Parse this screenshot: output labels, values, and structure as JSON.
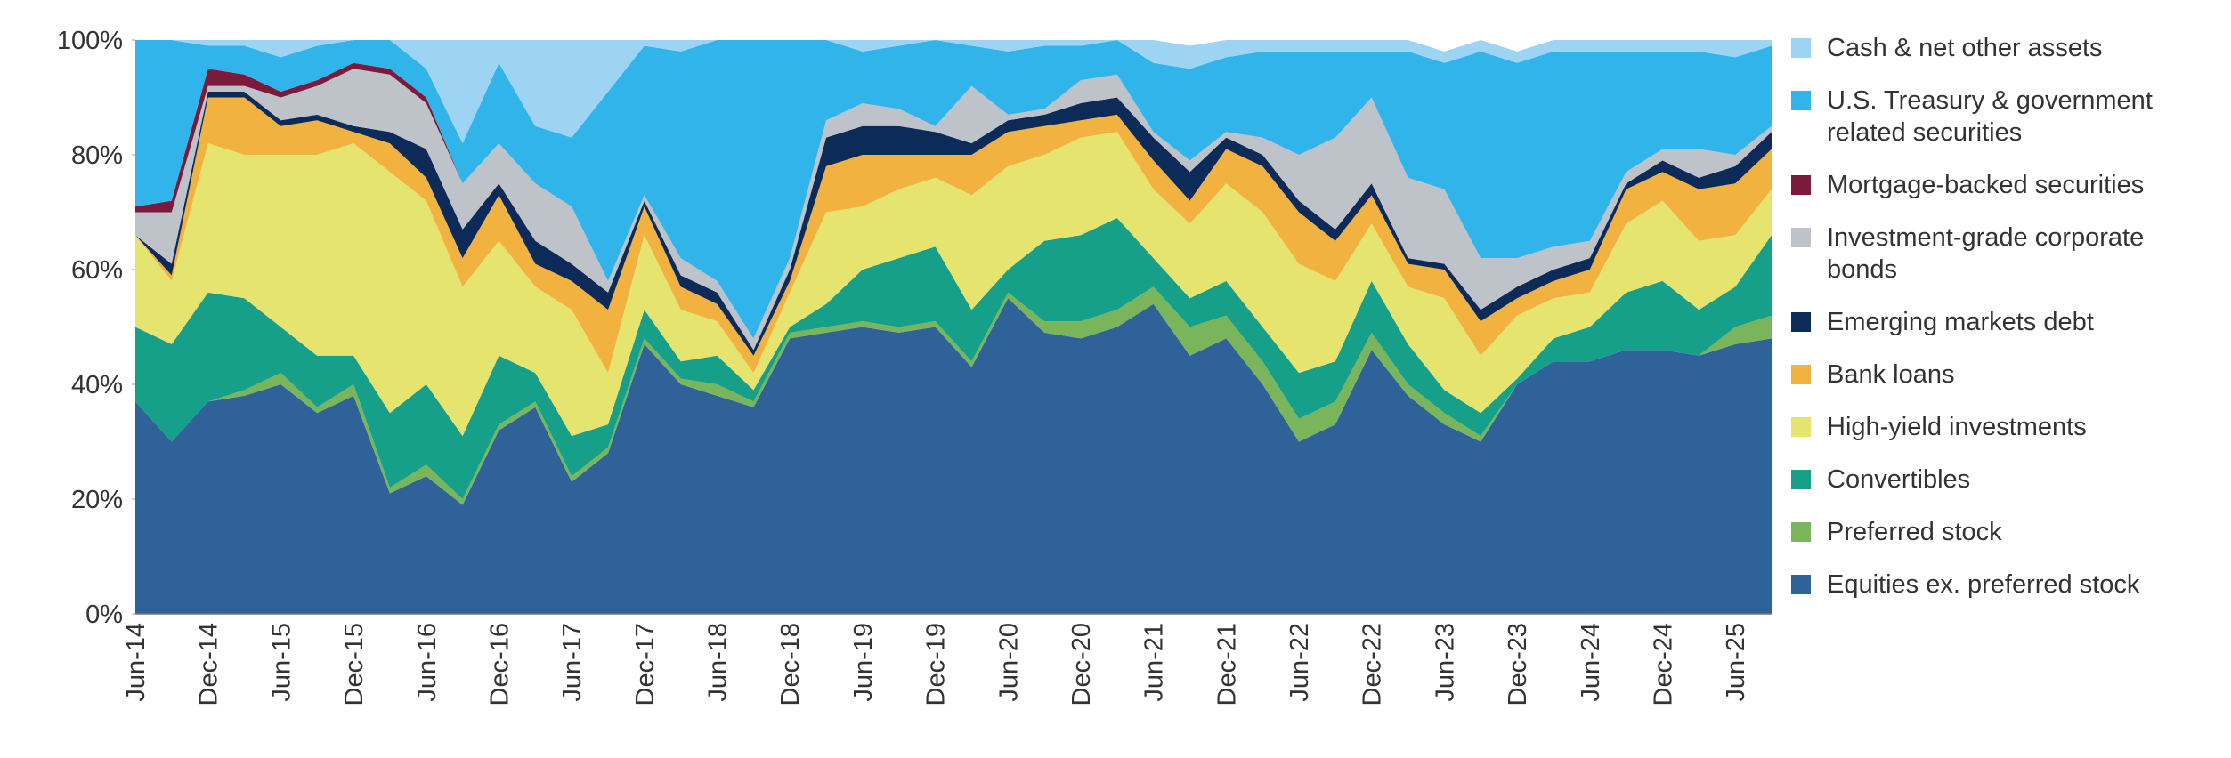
{
  "chart_data": {
    "type": "stacked_area",
    "categories": [
      "Jun-14",
      null,
      "Dec-14",
      null,
      "Jun-15",
      null,
      "Dec-15",
      null,
      "Jun-16",
      null,
      "Dec-16",
      null,
      "Jun-17",
      null,
      "Dec-17",
      null,
      "Jun-18",
      null,
      "Dec-18",
      null,
      "Jun-19",
      null,
      "Dec-19",
      null,
      "Jun-20",
      null,
      "Dec-20",
      null,
      "Jun-21",
      null,
      "Dec-21",
      null,
      "Jun-22",
      null,
      "Dec-22",
      null,
      "Jun-23",
      null,
      "Dec-23",
      null,
      "Jun-24",
      null,
      "Dec-24",
      null,
      "Jun-25",
      null
    ],
    "ylim": [
      0,
      100
    ],
    "yticks": [
      {
        "value": 0,
        "label": "0%"
      },
      {
        "value": 20,
        "label": "20%"
      },
      {
        "value": 40,
        "label": "40%"
      },
      {
        "value": 60,
        "label": "60%"
      },
      {
        "value": 80,
        "label": "80%"
      },
      {
        "value": 100,
        "label": "100%"
      }
    ],
    "series": [
      {
        "name": "Equities ex. preferred stock",
        "color": "#2e6299",
        "values": [
          37,
          30,
          37,
          38,
          40,
          35,
          38,
          21,
          24,
          19,
          32,
          36,
          23,
          28,
          47,
          40,
          38,
          36,
          48,
          49,
          50,
          49,
          50,
          43,
          55,
          49,
          48,
          50,
          54,
          45,
          48,
          40,
          30,
          33,
          46,
          38,
          33,
          30,
          40,
          44,
          44,
          46,
          46,
          45,
          47,
          48
        ]
      },
      {
        "name": "Preferred stock",
        "color": "#7ab55c",
        "values": [
          0,
          0,
          0,
          1,
          2,
          1,
          2,
          1,
          2,
          1,
          1,
          1,
          1,
          1,
          1,
          1,
          2,
          1,
          1,
          1,
          1,
          1,
          1,
          1,
          1,
          2,
          3,
          3,
          3,
          5,
          4,
          4,
          4,
          4,
          3,
          2,
          2,
          1,
          0,
          0,
          0,
          0,
          0,
          0,
          3,
          4
        ]
      },
      {
        "name": "Convertibles",
        "color": "#16a08a",
        "values": [
          13,
          17,
          19,
          16,
          8,
          9,
          5,
          13,
          14,
          11,
          12,
          5,
          7,
          4,
          5,
          3,
          5,
          2,
          1,
          4,
          9,
          12,
          13,
          9,
          4,
          14,
          15,
          16,
          5,
          5,
          6,
          6,
          8,
          7,
          9,
          7,
          4,
          4,
          1,
          4,
          6,
          10,
          12,
          8,
          7,
          14
        ]
      },
      {
        "name": "High-yield investments",
        "color": "#e5e46f",
        "values": [
          16,
          11,
          26,
          25,
          30,
          35,
          37,
          42,
          32,
          26,
          20,
          15,
          22,
          9,
          13,
          9,
          6,
          3,
          6,
          16,
          11,
          12,
          12,
          20,
          18,
          15,
          17,
          15,
          12,
          13,
          17,
          20,
          19,
          14,
          10,
          10,
          16,
          10,
          11,
          7,
          6,
          12,
          14,
          12,
          9,
          8
        ]
      },
      {
        "name": "Bank loans",
        "color": "#f2b23f",
        "values": [
          0,
          1,
          8,
          10,
          5,
          6,
          2,
          5,
          4,
          5,
          8,
          4,
          5,
          11,
          5,
          4,
          3,
          3,
          2,
          8,
          9,
          6,
          4,
          7,
          6,
          5,
          3,
          3,
          5,
          4,
          6,
          8,
          9,
          7,
          5,
          4,
          5,
          6,
          3,
          3,
          4,
          6,
          5,
          9,
          9,
          7
        ]
      },
      {
        "name": "Emerging markets debt",
        "color": "#0d2b58",
        "values": [
          0,
          2,
          1,
          1,
          1,
          1,
          1,
          2,
          5,
          5,
          2,
          4,
          3,
          3,
          1,
          2,
          2,
          1,
          2,
          5,
          5,
          5,
          4,
          2,
          2,
          2,
          3,
          3,
          4,
          5,
          2,
          2,
          2,
          2,
          2,
          1,
          1,
          2,
          2,
          2,
          2,
          1,
          2,
          2,
          3,
          3
        ]
      },
      {
        "name": "Investment-grade corporate bonds",
        "color": "#bec2c9",
        "values": [
          4,
          9,
          1,
          1,
          4,
          5,
          10,
          10,
          8,
          8,
          7,
          10,
          10,
          2,
          1,
          3,
          2,
          2,
          2,
          3,
          4,
          3,
          1,
          10,
          1,
          1,
          4,
          4,
          1,
          2,
          1,
          3,
          8,
          16,
          15,
          14,
          13,
          9,
          5,
          4,
          3,
          2,
          2,
          5,
          2,
          1
        ]
      },
      {
        "name": "Mortgage-backed securities",
        "color": "#7b1a3b",
        "values": [
          1,
          2,
          3,
          2,
          1,
          1,
          1,
          1,
          1,
          0,
          0,
          0,
          0,
          0,
          0,
          0,
          0,
          0,
          0,
          0,
          0,
          0,
          0,
          0,
          0,
          0,
          0,
          0,
          0,
          0,
          0,
          0,
          0,
          0,
          0,
          0,
          0,
          0,
          0,
          0,
          0,
          0,
          0,
          0,
          0,
          0
        ]
      },
      {
        "name": "U.S. Treasury & government related securities",
        "color": "#30b4ea",
        "values": [
          29,
          28,
          4,
          5,
          6,
          6,
          4,
          5,
          5,
          7,
          14,
          10,
          12,
          33,
          26,
          36,
          42,
          52,
          38,
          14,
          9,
          11,
          15,
          7,
          11,
          11,
          6,
          6,
          12,
          16,
          13,
          15,
          18,
          15,
          8,
          22,
          22,
          36,
          34,
          34,
          33,
          21,
          17,
          17,
          17,
          14
        ]
      },
      {
        "name": "Cash & net other assets",
        "color": "#9dd4f3",
        "values": [
          0,
          0,
          1,
          1,
          3,
          1,
          0,
          0,
          5,
          18,
          4,
          15,
          17,
          9,
          1,
          2,
          0,
          0,
          0,
          0,
          2,
          1,
          0,
          1,
          2,
          1,
          1,
          0,
          4,
          4,
          3,
          2,
          2,
          2,
          2,
          2,
          2,
          2,
          2,
          2,
          2,
          2,
          2,
          2,
          3,
          1
        ]
      }
    ]
  }
}
